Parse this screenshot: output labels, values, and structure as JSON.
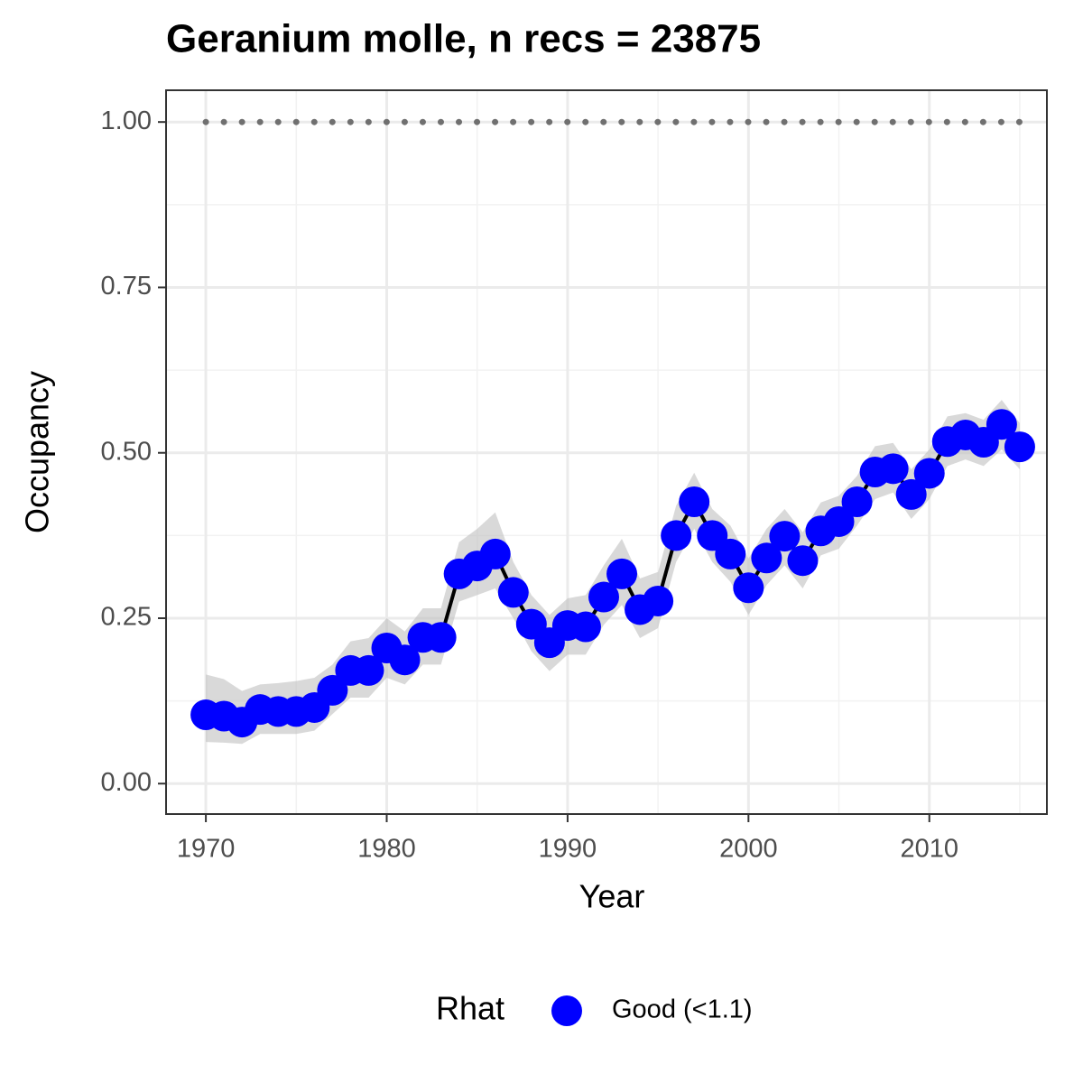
{
  "chart_data": {
    "type": "line",
    "title": "Geranium molle, n recs = 23875",
    "xlabel": "Year",
    "ylabel": "Occupancy",
    "x": [
      1970,
      1971,
      1972,
      1973,
      1974,
      1975,
      1976,
      1977,
      1978,
      1979,
      1980,
      1981,
      1982,
      1983,
      1984,
      1985,
      1986,
      1987,
      1988,
      1989,
      1990,
      1991,
      1992,
      1993,
      1994,
      1995,
      1996,
      1997,
      1998,
      1999,
      2000,
      2001,
      2002,
      2003,
      2004,
      2005,
      2006,
      2007,
      2008,
      2009,
      2010,
      2011,
      2012,
      2013,
      2014,
      2015
    ],
    "series": [
      {
        "name": "Good (<1.1)",
        "color": "#0000ff",
        "line_color": "#000000",
        "ribbon_color": "#bfbfbf",
        "values": [
          0.104,
          0.102,
          0.093,
          0.112,
          0.109,
          0.109,
          0.115,
          0.141,
          0.171,
          0.171,
          0.205,
          0.187,
          0.221,
          0.221,
          0.317,
          0.329,
          0.347,
          0.289,
          0.241,
          0.213,
          0.239,
          0.237,
          0.282,
          0.317,
          0.263,
          0.276,
          0.375,
          0.426,
          0.375,
          0.347,
          0.296,
          0.341,
          0.374,
          0.337,
          0.382,
          0.396,
          0.426,
          0.471,
          0.476,
          0.437,
          0.469,
          0.517,
          0.527,
          0.516,
          0.543,
          0.509
        ],
        "lower": [
          0.063,
          0.062,
          0.06,
          0.075,
          0.075,
          0.075,
          0.08,
          0.105,
          0.13,
          0.13,
          0.16,
          0.15,
          0.18,
          0.18,
          0.275,
          0.285,
          0.295,
          0.25,
          0.2,
          0.17,
          0.195,
          0.195,
          0.24,
          0.27,
          0.22,
          0.235,
          0.335,
          0.385,
          0.335,
          0.305,
          0.255,
          0.3,
          0.33,
          0.295,
          0.345,
          0.355,
          0.39,
          0.43,
          0.44,
          0.4,
          0.43,
          0.48,
          0.49,
          0.48,
          0.505,
          0.475
        ],
        "upper": [
          0.165,
          0.158,
          0.14,
          0.15,
          0.152,
          0.155,
          0.16,
          0.18,
          0.215,
          0.22,
          0.25,
          0.23,
          0.265,
          0.265,
          0.365,
          0.385,
          0.41,
          0.335,
          0.285,
          0.255,
          0.28,
          0.285,
          0.33,
          0.37,
          0.31,
          0.32,
          0.42,
          0.47,
          0.415,
          0.39,
          0.34,
          0.385,
          0.415,
          0.38,
          0.425,
          0.435,
          0.465,
          0.51,
          0.515,
          0.475,
          0.505,
          0.555,
          0.56,
          0.55,
          0.58,
          0.545
        ]
      }
    ],
    "reference_line": {
      "value": 1,
      "color": "#707070"
    },
    "legend_title": "Rhat",
    "legend_position": "bottom",
    "xlim": [
      1967.8,
      2016.5
    ],
    "xticks": [
      1970,
      1980,
      1990,
      2000,
      2010
    ],
    "x_minor_ticks": [
      1975,
      1985,
      1995,
      2005,
      2015
    ],
    "ylim": [
      -0.046,
      1.048
    ],
    "yticks": [
      {
        "value": 0,
        "label": "0.00"
      },
      {
        "value": 0.25,
        "label": "0.25"
      },
      {
        "value": 0.5,
        "label": "0.50"
      },
      {
        "value": 0.75,
        "label": "0.75"
      },
      {
        "value": 1,
        "label": "1.00"
      }
    ],
    "y_minor_ticks": [
      0.125,
      0.375,
      0.625,
      0.875
    ],
    "grid": true
  }
}
